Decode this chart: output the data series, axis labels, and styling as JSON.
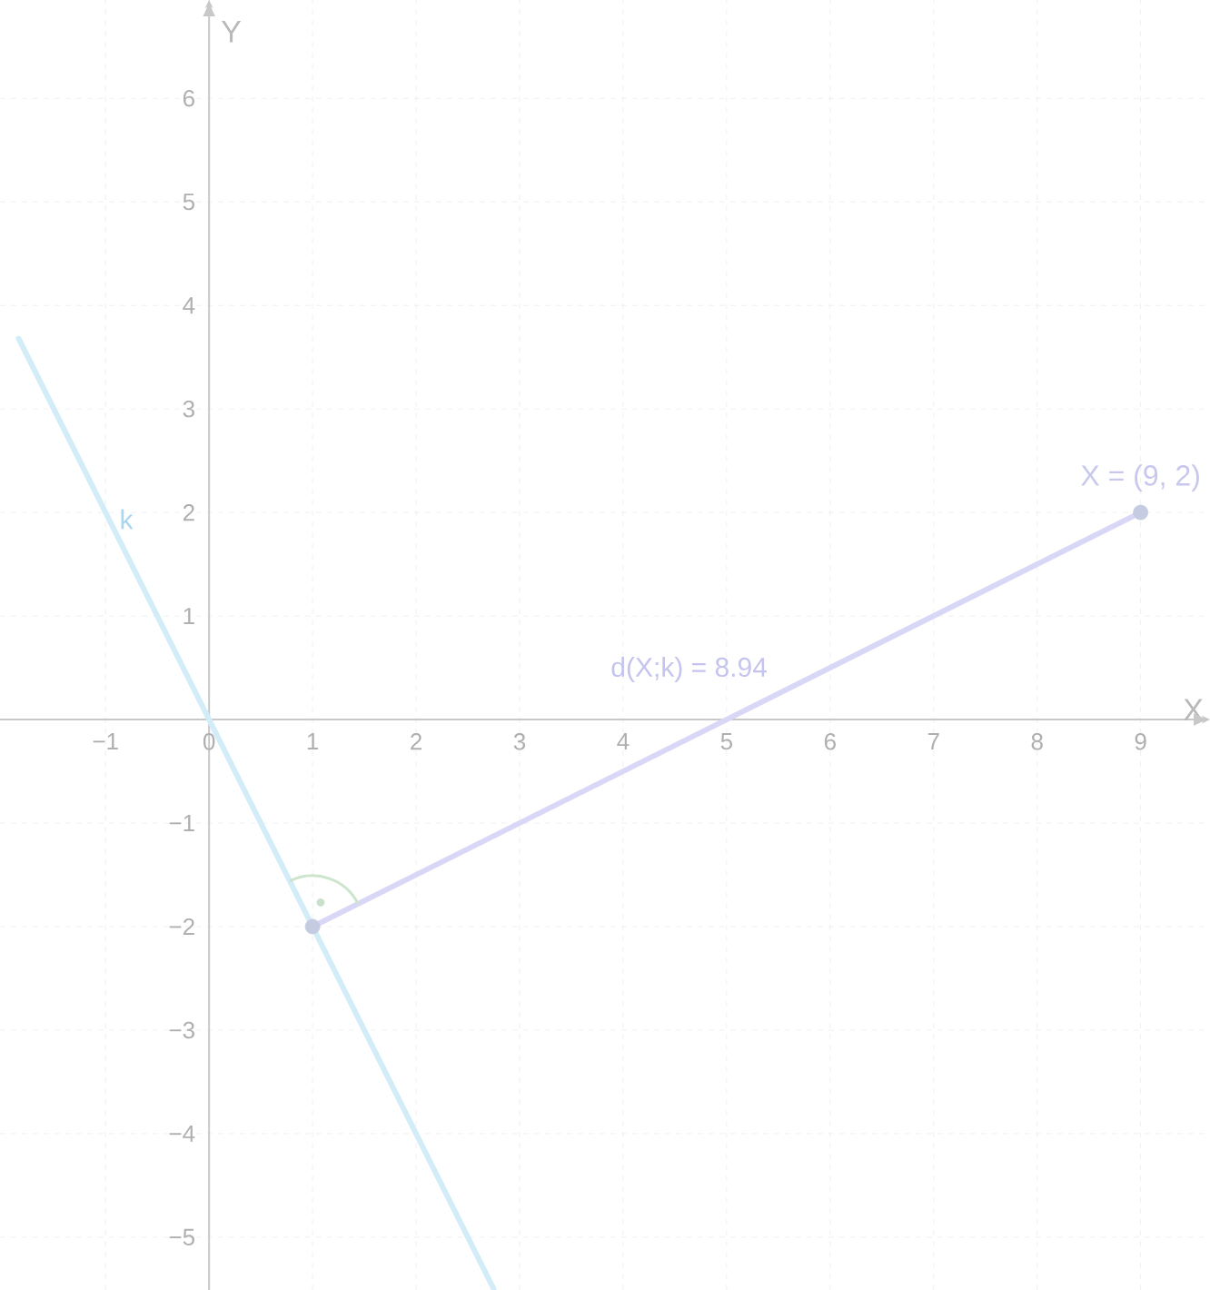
{
  "chart_data": {
    "type": "line",
    "xlabel": "X",
    "ylabel": "Y",
    "xlim": [
      -2.02,
      9.67
    ],
    "ylim": [
      -5.51,
      6.95
    ],
    "xticks": [
      {
        "value": -1,
        "label": "−1"
      },
      0,
      1,
      2,
      3,
      4,
      5,
      6,
      7,
      8,
      9
    ],
    "yticks": [
      {
        "value": -5,
        "label": "−5"
      },
      {
        "value": -4,
        "label": "−4"
      },
      {
        "value": -3,
        "label": "−3"
      },
      {
        "value": -2,
        "label": "−2"
      },
      {
        "value": -1,
        "label": "−1"
      },
      1,
      2,
      3,
      4,
      5,
      6
    ],
    "grid": true,
    "series": [
      {
        "name": "k",
        "color": "#d2ecf8",
        "x": [
          -1.84,
          2.75
        ],
        "values": [
          3.68,
          -5.5
        ]
      },
      {
        "name": "d(X;k) = 8.94",
        "color": "#d8d8f6",
        "x": [
          1,
          9
        ],
        "values": [
          -2,
          2
        ]
      },
      {
        "type": "scatter",
        "marker": "circle",
        "color": "#c5cbe0",
        "x": [
          1,
          9
        ],
        "values": [
          -2,
          2
        ]
      }
    ],
    "annotations": [
      {
        "text": "X = (9, 2)",
        "x": 9,
        "y": 2
      }
    ]
  }
}
